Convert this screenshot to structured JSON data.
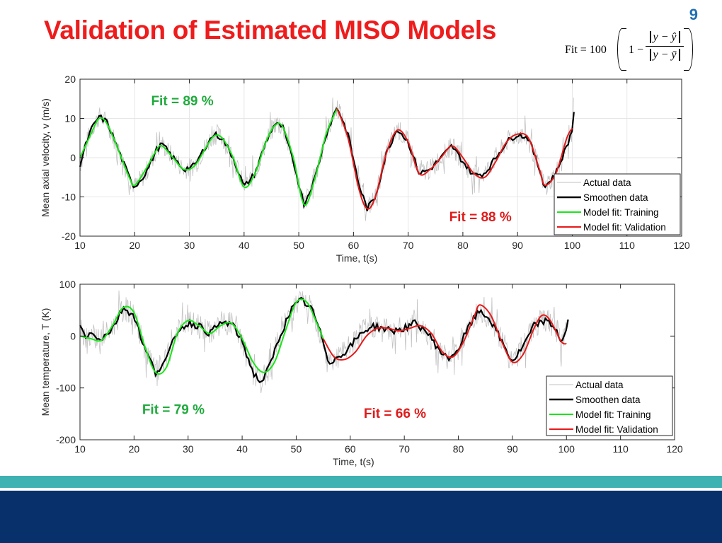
{
  "slide": {
    "title": "Validation of Estimated MISO Models",
    "page_number": "9",
    "formula": {
      "lhs": "Fit = 100",
      "one": "1 −",
      "numerator": "y − ŷ",
      "denominator": "y − ȳ"
    }
  },
  "colors": {
    "title": "#ee1c1c",
    "page_number": "#1f6fb5",
    "actual": "#c2c2c2",
    "smooth": "#000000",
    "training": "#19e619",
    "validation": "#e61919",
    "fit_training_label": "#1faa3c",
    "fit_validation_label": "#e01b1b",
    "band_teal": "#3eb1b3",
    "band_navy": "#08306b"
  },
  "chart_data": [
    {
      "type": "line",
      "ylabel": "Mean axial velocity, v (m/s)",
      "xlabel": "Time, t(s)",
      "xlim": [
        10,
        120
      ],
      "ylim": [
        -20,
        20
      ],
      "xticks": [
        10,
        20,
        30,
        40,
        50,
        60,
        70,
        80,
        90,
        100,
        110,
        120
      ],
      "yticks": [
        -20,
        -10,
        0,
        10,
        20
      ],
      "grid": true,
      "legend_position": "lower-right",
      "legend": [
        "Actual data",
        "Smoothen data",
        "Model fit: Training",
        "Model fit: Validation"
      ],
      "annotations": [
        {
          "text": "Fit = 89 %",
          "x": 23,
          "y": 13.3,
          "color_key": "fit_training_label"
        },
        {
          "text": "Fit = 88 %",
          "x": 77.5,
          "y": -16.2,
          "color_key": "fit_validation_label"
        }
      ],
      "smoothen_data": {
        "x": [
          10,
          11,
          12,
          13.5,
          15,
          17,
          19,
          20,
          22,
          24,
          25,
          27,
          29,
          31,
          33,
          34.5,
          36,
          38,
          40,
          42,
          44,
          45.5,
          47,
          49,
          51,
          53,
          55,
          57,
          59,
          61,
          62.5,
          64,
          66,
          68,
          70,
          72,
          74,
          76,
          78,
          80,
          82,
          84,
          86,
          88,
          90,
          92,
          94,
          95,
          97,
          99,
          100,
          100.3
        ],
        "y": [
          -2,
          3,
          7,
          10.5,
          9,
          2,
          -5,
          -7.5,
          -4,
          2,
          3.5,
          0,
          -3,
          -2,
          3,
          6,
          5,
          0,
          -7.5,
          -4,
          4,
          8.5,
          8,
          -1,
          -12,
          -5,
          6,
          13,
          6,
          -7,
          -13,
          -10,
          1,
          7.5,
          4,
          -4,
          -3,
          0,
          3,
          -1,
          -4.5,
          -4,
          0,
          4,
          6,
          5,
          -3,
          -7.5,
          -4,
          3,
          7,
          12
        ]
      },
      "training_fit": {
        "x": [
          10,
          12,
          13.5,
          15,
          17,
          19,
          20,
          22,
          24,
          25,
          27,
          29,
          31,
          33,
          34.5,
          36,
          38,
          40,
          42,
          44,
          45.5,
          47,
          49,
          51,
          53,
          55,
          57
        ],
        "y": [
          0,
          6,
          10,
          8.5,
          2,
          -5,
          -7,
          -3,
          2,
          3,
          0,
          -3,
          -2,
          2.5,
          5.5,
          5,
          0,
          -7.5,
          -4,
          4,
          8,
          8,
          0,
          -12,
          -5,
          6,
          12.5
        ]
      },
      "validation_fit": {
        "x": [
          57,
          59,
          61,
          62.5,
          64,
          66,
          68,
          70,
          72,
          74,
          76,
          78,
          80,
          82,
          84,
          86,
          88,
          90,
          92,
          94,
          95,
          97,
          99,
          100
        ],
        "y": [
          12.5,
          5,
          -8,
          -13,
          -10,
          1,
          7,
          4,
          -4,
          -3,
          0,
          3,
          0,
          -4,
          -5,
          -1,
          4,
          6,
          5,
          -3,
          -7,
          -4,
          5,
          7.5
        ]
      },
      "actual_noise_amplitude": 2.6
    },
    {
      "type": "line",
      "ylabel": "Mean temperature, T (K)",
      "xlabel": "Time, t(s)",
      "xlim": [
        10,
        120
      ],
      "ylim": [
        -200,
        100
      ],
      "xticks": [
        10,
        20,
        30,
        40,
        50,
        60,
        70,
        80,
        90,
        100,
        110,
        120
      ],
      "yticks": [
        -200,
        -100,
        0,
        100
      ],
      "grid": false,
      "legend_position": "lower-right",
      "legend": [
        "Actual data",
        "Smoothen data",
        "Model fit: Training",
        "Model fit: Validation"
      ],
      "annotations": [
        {
          "text": "Fit = 79 %",
          "x": 21.5,
          "y": -150,
          "color_key": "fit_training_label"
        },
        {
          "text": "Fit = 66 %",
          "x": 62.5,
          "y": -158,
          "color_key": "fit_validation_label"
        }
      ],
      "smoothen_data": {
        "x": [
          10,
          11,
          12,
          14,
          16,
          18,
          20,
          22,
          24,
          26,
          28,
          30,
          32,
          34,
          36,
          38,
          40,
          42,
          43.5,
          45,
          47,
          49,
          51,
          53,
          55,
          56,
          58,
          60,
          62,
          64,
          66,
          68,
          70,
          72,
          74,
          76,
          78,
          80,
          82,
          84,
          86,
          88,
          90,
          92,
          94,
          96,
          98,
          99,
          100,
          100.3
        ],
        "y": [
          20,
          0,
          5,
          -5,
          15,
          55,
          40,
          -25,
          -70,
          -45,
          10,
          25,
          20,
          5,
          25,
          25,
          -10,
          -70,
          -90,
          -60,
          0,
          50,
          70,
          50,
          -10,
          -50,
          -40,
          -20,
          5,
          20,
          15,
          10,
          15,
          25,
          10,
          -20,
          -45,
          -25,
          20,
          50,
          30,
          -10,
          -50,
          -20,
          20,
          30,
          15,
          -10,
          10,
          30
        ]
      },
      "training_fit": {
        "x": [
          10,
          12,
          14,
          16,
          18,
          20,
          22,
          24,
          26,
          28,
          30,
          32,
          34,
          36,
          38,
          40,
          42,
          44,
          46,
          48,
          50,
          52,
          54,
          55
        ],
        "y": [
          0,
          -5,
          -8,
          20,
          55,
          45,
          -20,
          -70,
          -60,
          5,
          30,
          20,
          5,
          20,
          25,
          -5,
          -50,
          -70,
          -50,
          10,
          65,
          65,
          20,
          -5
        ]
      },
      "validation_fit": {
        "x": [
          55,
          57,
          59,
          61,
          63,
          65,
          67,
          69,
          71,
          73,
          75,
          77,
          79,
          81,
          83,
          84,
          86,
          88,
          90,
          92,
          94,
          95.5,
          97,
          99,
          100
        ],
        "y": [
          -5,
          -40,
          -45,
          -30,
          0,
          15,
          15,
          10,
          15,
          20,
          5,
          -30,
          -40,
          -10,
          40,
          60,
          40,
          -10,
          -50,
          -35,
          15,
          40,
          30,
          -10,
          -15
        ]
      },
      "actual_noise_amplitude": 24
    }
  ]
}
